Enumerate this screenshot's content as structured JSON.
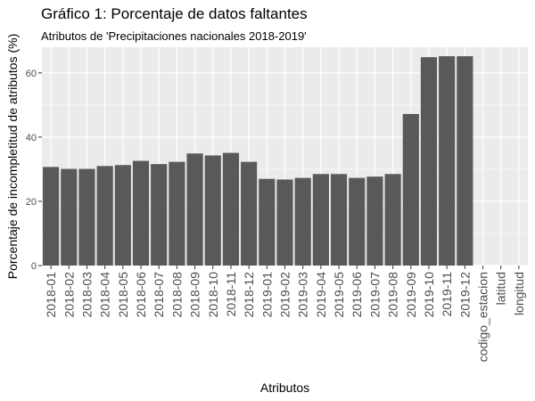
{
  "chart_data": {
    "type": "bar",
    "title": "Gráfico 1: Porcentaje de datos faltantes",
    "subtitle": "Atributos de 'Precipitaciones nacionales 2018-2019'",
    "xlabel": "Atributos",
    "ylabel": "Porcentaje de incompletitud de atributos (%)",
    "ylim": [
      0,
      68
    ],
    "yticks": [
      0,
      20,
      40,
      60
    ],
    "grid": true,
    "bar_color": "#595959",
    "panel_color": "#ebebeb",
    "grid_color": "#ffffff",
    "categories": [
      "2018-01",
      "2018-02",
      "2018-03",
      "2018-04",
      "2018-05",
      "2018-06",
      "2018-07",
      "2018-08",
      "2018-09",
      "2018-10",
      "2018-11",
      "2018-12",
      "2019-01",
      "2019-02",
      "2019-03",
      "2019-04",
      "2019-05",
      "2019-06",
      "2019-07",
      "2019-08",
      "2019-09",
      "2019-10",
      "2019-11",
      "2019-12",
      "codigo_estacion",
      "latitud",
      "longitud"
    ],
    "values": [
      30.7,
      30.1,
      30.1,
      31.0,
      31.3,
      32.6,
      31.6,
      32.3,
      34.9,
      34.3,
      35.1,
      32.3,
      27.0,
      26.8,
      27.3,
      28.5,
      28.5,
      27.3,
      27.7,
      28.5,
      47.2,
      64.9,
      65.2,
      65.2,
      0,
      0,
      0
    ]
  }
}
